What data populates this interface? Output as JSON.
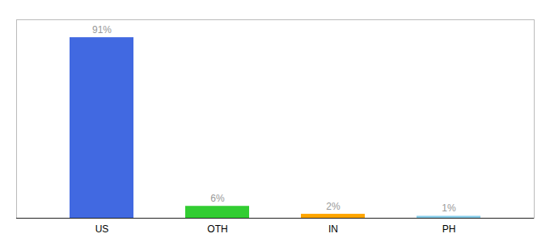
{
  "chart_data": {
    "type": "bar",
    "categories": [
      "US",
      "OTH",
      "IN",
      "PH"
    ],
    "values": [
      91,
      6,
      2,
      1
    ],
    "value_labels": [
      "91%",
      "6%",
      "2%",
      "1%"
    ],
    "data_labels": true,
    "colors": [
      "#4169e1",
      "#32cd32",
      "#ffa500",
      "#87ceeb"
    ],
    "ylim": [
      0,
      100
    ],
    "tick_labels": "x",
    "grid": false
  }
}
